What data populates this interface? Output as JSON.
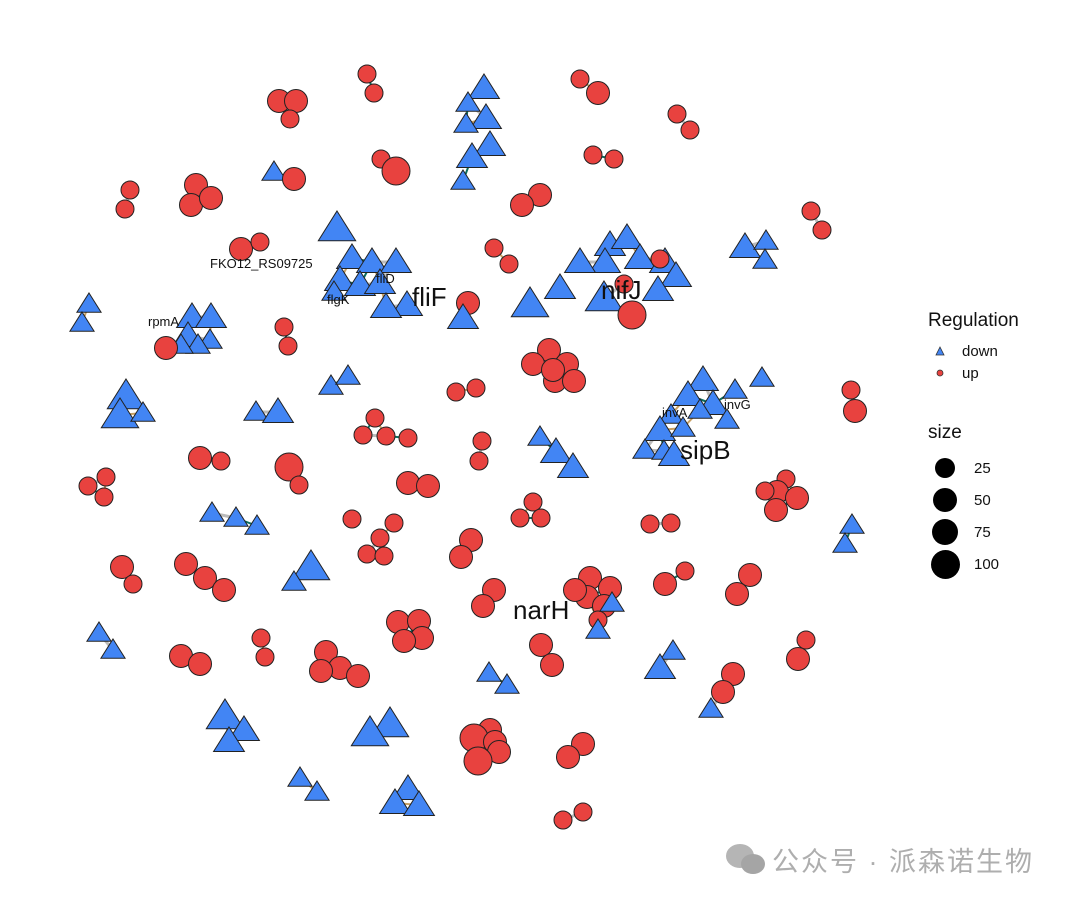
{
  "node_labels": [
    {
      "text": "FKO12_RS09725",
      "size": "small"
    },
    {
      "text": "fliD",
      "size": "small"
    },
    {
      "text": "flgK",
      "size": "small"
    },
    {
      "text": "fliF",
      "size": "large"
    },
    {
      "text": "rpmA",
      "size": "small"
    },
    {
      "text": "nifJ",
      "size": "large"
    },
    {
      "text": "invA",
      "size": "small"
    },
    {
      "text": "invG",
      "size": "small"
    },
    {
      "text": "sipB",
      "size": "large"
    },
    {
      "text": "narH",
      "size": "large"
    }
  ],
  "legend": {
    "regulation": {
      "title": "Regulation",
      "items": [
        {
          "label": "down",
          "shape": "triangle",
          "color": "#4285f4"
        },
        {
          "label": "up",
          "shape": "circle",
          "color": "#e8423f"
        }
      ]
    },
    "size": {
      "title": "size",
      "items": [
        {
          "label": "25"
        },
        {
          "label": "50"
        },
        {
          "label": "75"
        },
        {
          "label": "100"
        }
      ]
    }
  },
  "colors": {
    "down": "#4285f4",
    "up": "#e8423f",
    "node_stroke": "#222222",
    "edge_positive": "#0b6e5f",
    "edge_negative": "#c8a063",
    "edge_neutral": "#bbbbbb"
  },
  "watermark": "公众号 · 派森诺生物"
}
